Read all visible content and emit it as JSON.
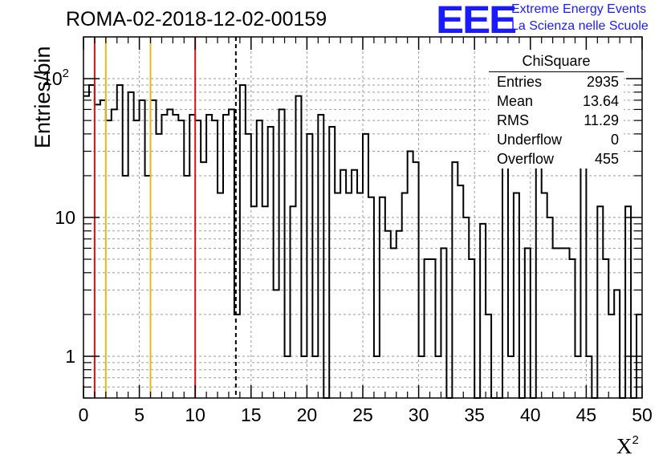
{
  "title": "ROMA-02-2018-12-02-00159",
  "logo": {
    "mark": "EEE",
    "line1": "Extreme Energy Events",
    "line2": "La Scienza nelle Scuole"
  },
  "stats_box": {
    "title": "ChiSquare",
    "rows": [
      {
        "label": "Entries",
        "value": "2935"
      },
      {
        "label": "Mean",
        "value": "13.64"
      },
      {
        "label": "RMS",
        "value": "11.29"
      },
      {
        "label": "Underflow",
        "value": "0"
      },
      {
        "label": "Overflow",
        "value": "455"
      }
    ]
  },
  "chart_data": {
    "type": "bar",
    "histogram": true,
    "ylabel": "Entries/bin",
    "xlabel_base": "X",
    "xlabel_exp": "2",
    "xlim": [
      0,
      50
    ],
    "ylim": [
      0.5,
      200
    ],
    "yscale": "log",
    "grid": true,
    "bin_width": 0.5,
    "x_ticks": [
      0,
      5,
      10,
      15,
      20,
      25,
      30,
      35,
      40,
      45,
      50
    ],
    "y_ticks": [
      {
        "value": 1,
        "label": "1"
      },
      {
        "value": 10,
        "label": "10"
      },
      {
        "value": 100,
        "label": "10",
        "sup": "2"
      }
    ],
    "bin_values": [
      75,
      90,
      65,
      70,
      50,
      60,
      90,
      20,
      80,
      50,
      70,
      20,
      70,
      40,
      55,
      60,
      55,
      50,
      20,
      55,
      50,
      25,
      55,
      50,
      15,
      55,
      60,
      2,
      90,
      40,
      12,
      50,
      12,
      45,
      3,
      60,
      1,
      12,
      75,
      1,
      40,
      1,
      55,
      0,
      45,
      15,
      22,
      15,
      22,
      15,
      40,
      14,
      1,
      14,
      8,
      6,
      8,
      15,
      30,
      25,
      1,
      5,
      5,
      1,
      6,
      0,
      25,
      17,
      10,
      5,
      0,
      9,
      2,
      0,
      0,
      30,
      1,
      15,
      0,
      6,
      0,
      25,
      15,
      10,
      6,
      6,
      6,
      5,
      1,
      25,
      1,
      0,
      12,
      5,
      2,
      3,
      0,
      12,
      0,
      2
    ],
    "annotations": [
      {
        "x": 1,
        "style": "solid",
        "color": "#dd1111"
      },
      {
        "x": 2,
        "style": "solid",
        "color": "#e8b81a"
      },
      {
        "x": 6,
        "style": "solid",
        "color": "#e8b81a"
      },
      {
        "x": 10,
        "style": "solid",
        "color": "#dd1111"
      },
      {
        "x": 13.64,
        "style": "dashed",
        "color": "#000000"
      }
    ]
  }
}
